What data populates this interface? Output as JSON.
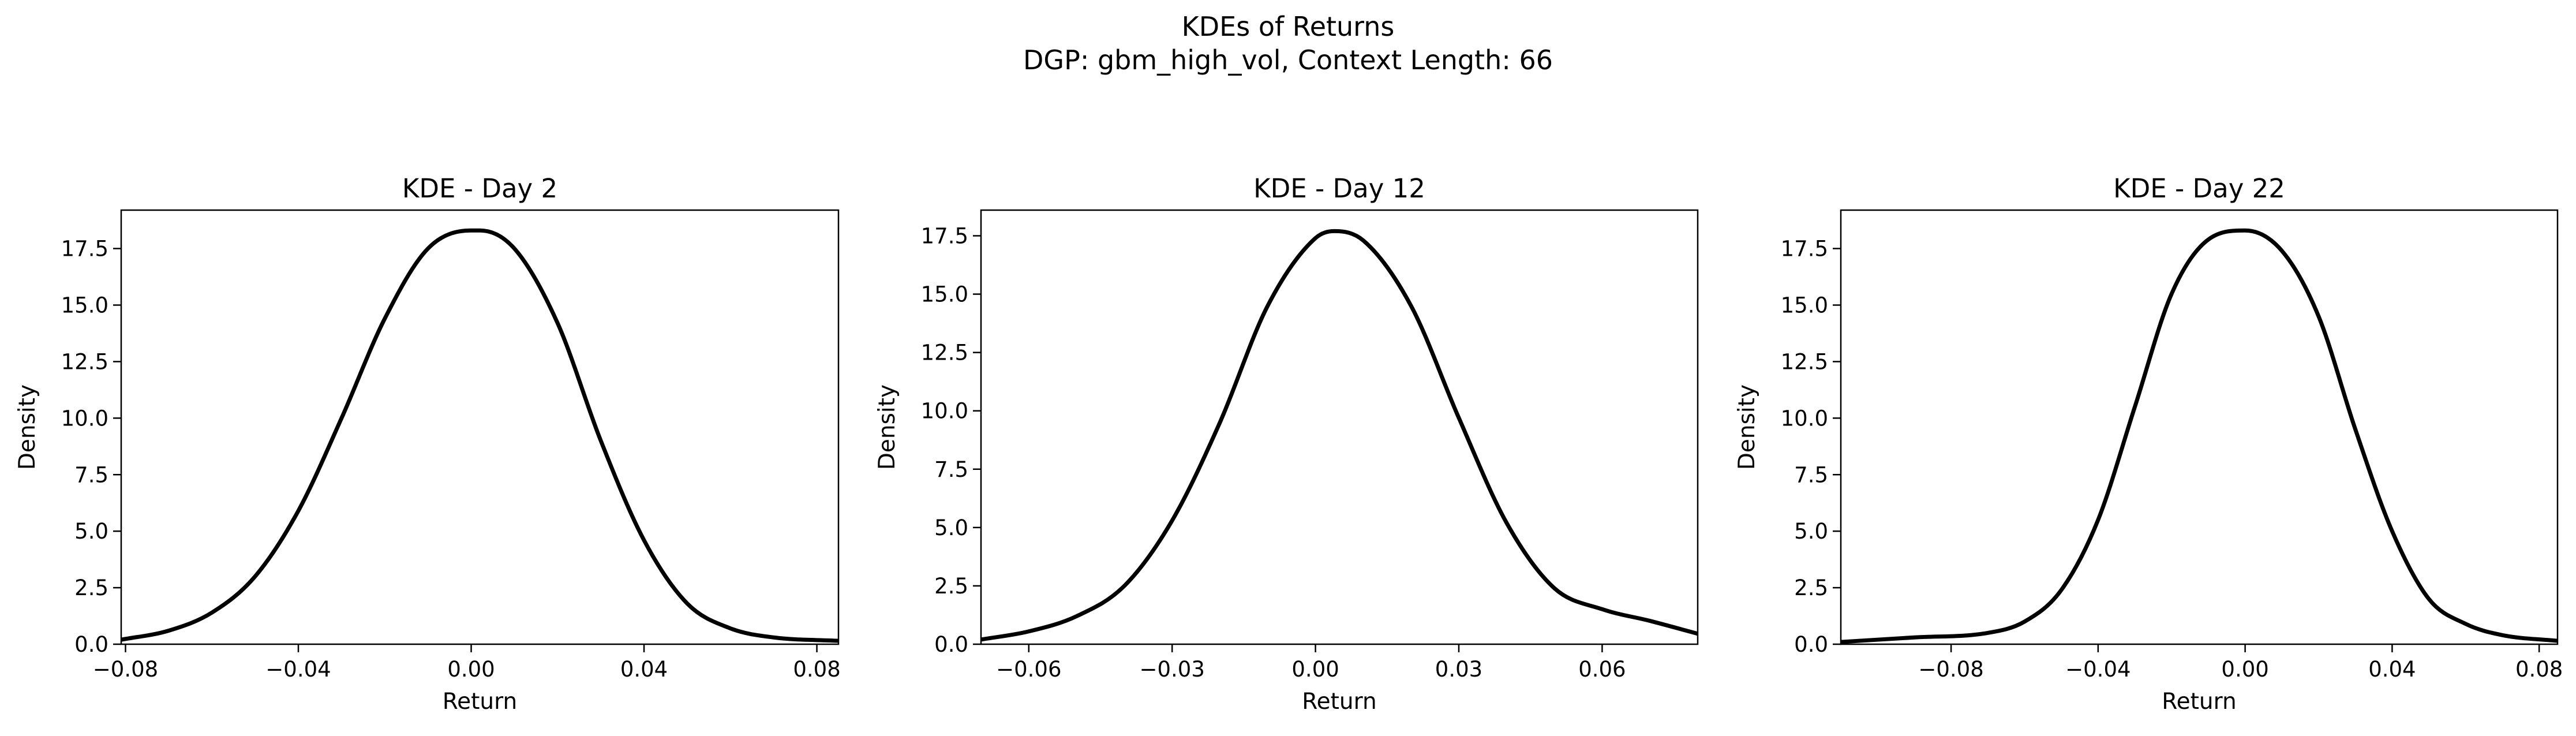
{
  "figure": {
    "title": "KDEs of Returns",
    "subtitle": "DGP: gbm_high_vol, Context Length: 66"
  },
  "chart_data": [
    {
      "type": "line",
      "title": "KDE - Day 2",
      "xlabel": "Return",
      "ylabel": "Density",
      "xlim": [
        -0.081,
        0.085
      ],
      "ylim": [
        0,
        19.2
      ],
      "xticks": [
        -0.08,
        -0.04,
        0.0,
        0.04,
        0.08
      ],
      "xtick_labels": [
        "−0.08",
        "−0.04",
        "0.00",
        "0.04",
        "0.08"
      ],
      "yticks": [
        0,
        2.5,
        5,
        7.5,
        10,
        12.5,
        15,
        17.5
      ],
      "ytick_labels": [
        "0.0",
        "2.5",
        "5.0",
        "7.5",
        "10.0",
        "12.5",
        "15.0",
        "17.5"
      ],
      "grid": false,
      "series": [
        {
          "color": "#000000",
          "x": [
            -0.081,
            -0.07,
            -0.06,
            -0.05,
            -0.04,
            -0.03,
            -0.02,
            -0.01,
            0.0,
            0.002,
            0.01,
            0.02,
            0.03,
            0.04,
            0.05,
            0.06,
            0.07,
            0.085
          ],
          "y": [
            0.2,
            0.6,
            1.4,
            3.0,
            5.9,
            10.0,
            14.4,
            17.5,
            18.3,
            18.3,
            17.5,
            14.2,
            9.0,
            4.6,
            1.8,
            0.7,
            0.3,
            0.15
          ]
        }
      ]
    },
    {
      "type": "line",
      "title": "KDE - Day 12",
      "xlabel": "Return",
      "ylabel": "Density",
      "xlim": [
        -0.07,
        0.08
      ],
      "ylim": [
        0,
        18.6
      ],
      "xticks": [
        -0.06,
        -0.03,
        0.0,
        0.03,
        0.06
      ],
      "xtick_labels": [
        "−0.06",
        "−0.03",
        "0.00",
        "0.03",
        "0.06"
      ],
      "yticks": [
        0,
        2.5,
        5,
        7.5,
        10,
        12.5,
        15,
        17.5
      ],
      "ytick_labels": [
        "0.0",
        "2.5",
        "5.0",
        "7.5",
        "10.0",
        "12.5",
        "15.0",
        "17.5"
      ],
      "grid": false,
      "series": [
        {
          "color": "#000000",
          "x": [
            -0.07,
            -0.06,
            -0.05,
            -0.04,
            -0.03,
            -0.02,
            -0.01,
            0.0,
            0.004,
            0.01,
            0.02,
            0.03,
            0.04,
            0.05,
            0.06,
            0.07,
            0.08
          ],
          "y": [
            0.2,
            0.55,
            1.2,
            2.5,
            5.3,
            9.5,
            14.5,
            17.4,
            17.7,
            17.3,
            14.5,
            9.7,
            5.2,
            2.4,
            1.5,
            1.0,
            0.45
          ]
        }
      ]
    },
    {
      "type": "line",
      "title": "KDE - Day 22",
      "xlabel": "Return",
      "ylabel": "Density",
      "xlim": [
        -0.11,
        0.085
      ],
      "ylim": [
        0,
        19.2
      ],
      "xticks": [
        -0.08,
        -0.04,
        0.0,
        0.04,
        0.08
      ],
      "xtick_labels": [
        "−0.08",
        "−0.04",
        "0.00",
        "0.04",
        "0.08"
      ],
      "yticks": [
        0,
        2.5,
        5,
        7.5,
        10,
        12.5,
        15,
        17.5
      ],
      "ytick_labels": [
        "0.0",
        "2.5",
        "5.0",
        "7.5",
        "10.0",
        "12.5",
        "15.0",
        "17.5"
      ],
      "grid": false,
      "series": [
        {
          "color": "#000000",
          "x": [
            -0.11,
            -0.09,
            -0.07,
            -0.06,
            -0.05,
            -0.04,
            -0.03,
            -0.02,
            -0.01,
            0.0,
            0.01,
            0.02,
            0.03,
            0.04,
            0.05,
            0.06,
            0.07,
            0.085
          ],
          "y": [
            0.1,
            0.3,
            0.5,
            1.0,
            2.4,
            5.5,
            10.5,
            15.5,
            17.9,
            18.3,
            17.4,
            14.5,
            9.5,
            5.0,
            2.0,
            0.9,
            0.4,
            0.15
          ]
        }
      ]
    }
  ]
}
